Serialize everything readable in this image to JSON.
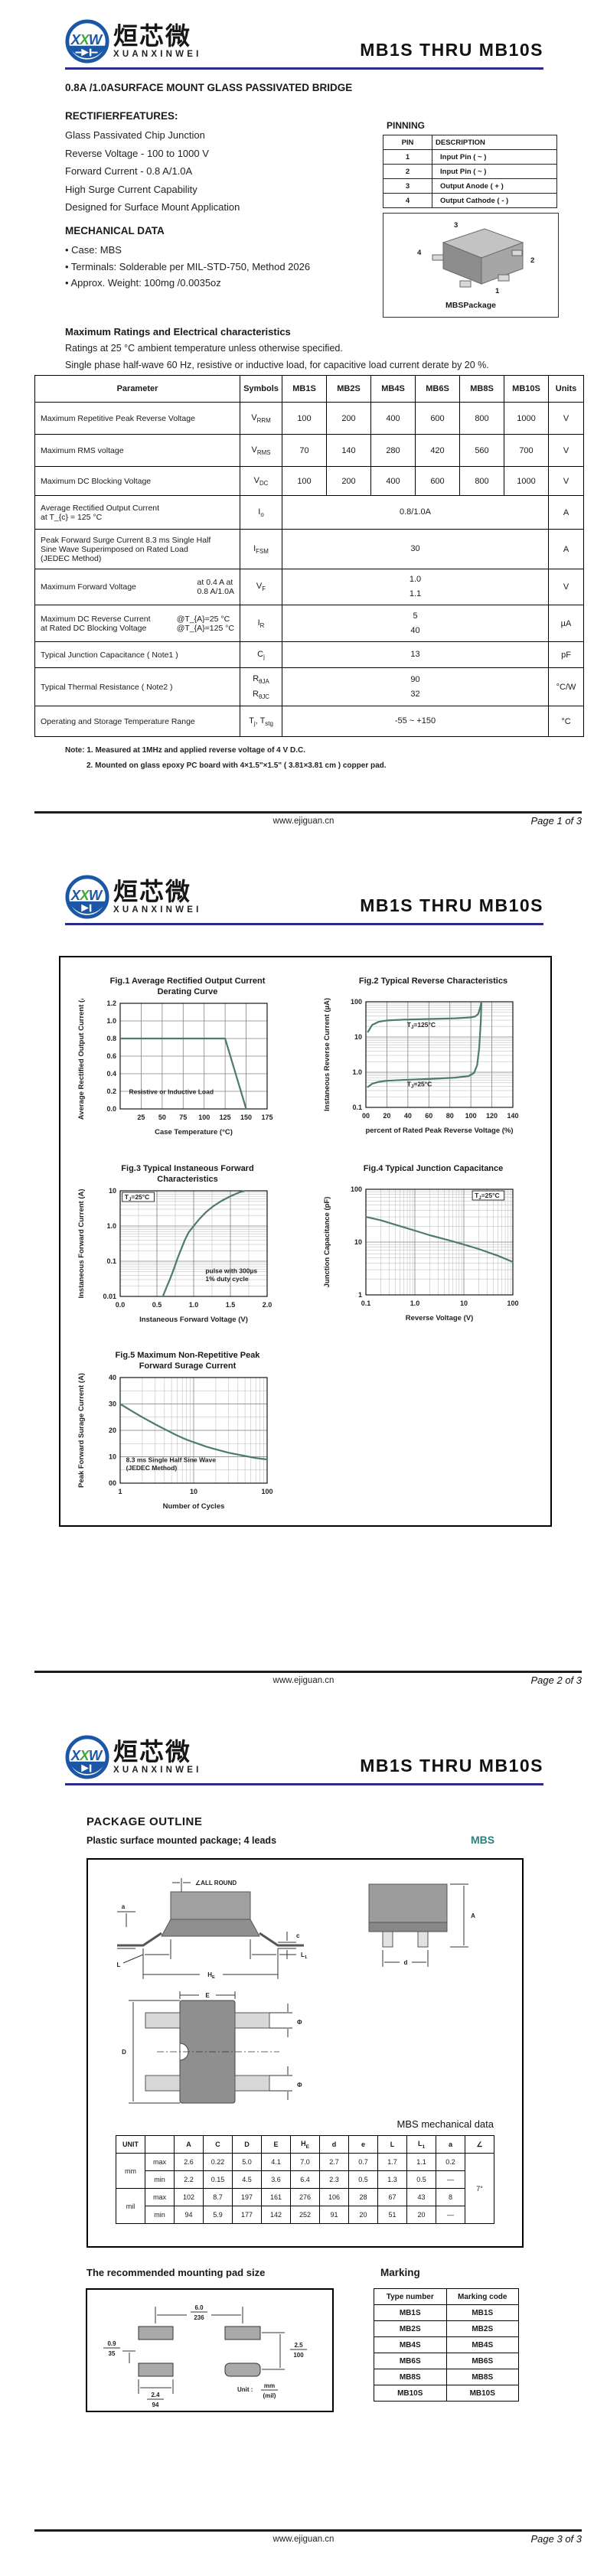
{
  "doc": {
    "title": "MB1S  THRU  MB10S"
  },
  "brand": {
    "name_cn": "烜芯微",
    "name_en": "XUANXINWEI",
    "logo_l1": "X",
    "logo_l2": "X",
    "logo_l3": "W"
  },
  "colors": {
    "accent_navy": "#2b2b8c",
    "teal": "#2e7f7c",
    "curve_teal": "#4d7a72",
    "logo_blue": "#1b57a6",
    "logo_green": "#3faa3b"
  },
  "footer": {
    "url": "www.ejiguan.cn",
    "pages": [
      "Page 1 of 3",
      "Page 2 of 3",
      "Page 3 of 3"
    ]
  },
  "page1": {
    "subtitle": "0.8A /1.0ASURFACE MOUNT GLASS PASSIVATED BRIDGE",
    "features_heading": "RECTIFIERFEATURES:",
    "features": [
      "Glass Passivated Chip Junction",
      "Reverse Voltage - 100 to 1000 V",
      "Forward Current - 0.8 A/1.0A",
      "High Surge Current Capability",
      "Designed for Surface Mount Application"
    ],
    "pinning_heading": "PINNING",
    "pinning": {
      "headers": [
        "PIN",
        "DESCRIPTION"
      ],
      "rows": [
        [
          "1",
          "Input Pin ( ~ )"
        ],
        [
          "2",
          "Input Pin ( ~ )"
        ],
        [
          "3",
          "Output Anode ( + )"
        ],
        [
          "4",
          "Output Cathode ( - )"
        ]
      ]
    },
    "mech_heading": "MECHANICAL DATA",
    "mech_items": [
      "• Case: MBS",
      "• Terminals: Solderable per MIL-STD-750, Method 2026",
      "• Approx. Weight: 100mg /0.0035oz"
    ],
    "package_caption": "MBSPackage",
    "package_pins": [
      "3",
      "4",
      "2",
      "1"
    ],
    "ratings_heading": "Maximum Ratings and Electrical characteristics",
    "ratings_sub1": "Ratings at 25 °C ambient temperature unless otherwise specified.",
    "ratings_sub2": "Single phase half-wave 60 Hz, resistive or inductive load, for capacitive load current derate by 20 %.",
    "ratings": {
      "headers": [
        "Parameter",
        "Symbols",
        "MB1S",
        "MB2S",
        "MB4S",
        "MB6S",
        "MB8S",
        "MB10S",
        "Units"
      ],
      "rows": [
        {
          "param": "Maximum Repetitive Peak Reverse Voltage",
          "symbol": "V_{RRM}",
          "values": [
            "100",
            "200",
            "400",
            "600",
            "800",
            "1000"
          ],
          "unit": "V"
        },
        {
          "param": "Maximum RMS voltage",
          "symbol": "V_{RMS}",
          "values": [
            "70",
            "140",
            "280",
            "420",
            "560",
            "700"
          ],
          "unit": "V"
        },
        {
          "param": "Maximum DC Blocking Voltage",
          "symbol": "V_{DC}",
          "values": [
            "100",
            "200",
            "400",
            "600",
            "800",
            "1000"
          ],
          "unit": "V"
        },
        {
          "param": "Average Rectified Output Current\nat T_{c} = 125 °C",
          "symbol": "I_{o}",
          "span": "0.8/1.0A",
          "unit": "A"
        },
        {
          "param": "Peak Forward Surge Current 8.3 ms Single Half\nSine Wave Superimposed on Rated Load\n(JEDEC Method)",
          "symbol": "I_{FSM}",
          "span": "30",
          "unit": "A"
        },
        {
          "param": "Maximum  Forward Voltage",
          "cond": "at 0.4 A at\n0.8 A/1.0A",
          "symbol": "V_{F}",
          "span": "1.0\n1.1",
          "unit": "V"
        },
        {
          "param": "Maximum DC Reverse Current\nat Rated DC Blocking Voltage",
          "cond": "@T_{A}=25 °C\n@T_{A}=125 °C",
          "symbol": "I_{R}",
          "span": "5\n40",
          "unit": "µA"
        },
        {
          "param": "Typical Junction Capacitance ( Note1 )",
          "symbol": "C_{j}",
          "span": "13",
          "unit": "pF"
        },
        {
          "param": "Typical Thermal Resistance ( Note2 )",
          "symbol": "R_{θJA}\nR_{θJC}",
          "span": "90\n32",
          "unit": "°C/W"
        },
        {
          "param": "Operating and Storage Temperature Range",
          "symbol": "T_{j}, T_{stg}",
          "span": "-55 ~ +150",
          "unit": "°C"
        }
      ]
    },
    "notes": [
      "Note:  1. Measured at 1MHz and applied reverse voltage of 4 V D.C.",
      "2. Mounted on glass epoxy PC board with 4×1.5\"×1.5\" ( 3.81×3.81 cm ) copper pad."
    ]
  },
  "chart_data": [
    {
      "type": "line",
      "title": "Fig.1  Average Rectified Output Current\nDerating Curve",
      "xlabel": "Case Temperature (°C)",
      "ylabel": "Average Rectified Output Current (A)",
      "x_scale": "linear",
      "y_scale": "linear",
      "xlim": [
        0,
        175
      ],
      "ylim": [
        0,
        1.2
      ],
      "x_ticks": [
        {
          "v": 25,
          "l": "25"
        },
        {
          "v": 50,
          "l": "50"
        },
        {
          "v": 75,
          "l": "75"
        },
        {
          "v": 100,
          "l": "100"
        },
        {
          "v": 125,
          "l": "125"
        },
        {
          "v": 150,
          "l": "150"
        },
        {
          "v": 175,
          "l": "175"
        }
      ],
      "y_ticks": [
        {
          "v": 0,
          "l": "0.0"
        },
        {
          "v": 0.2,
          "l": "0.2"
        },
        {
          "v": 0.4,
          "l": "0.4"
        },
        {
          "v": 0.6,
          "l": "0.6"
        },
        {
          "v": 0.8,
          "l": "0.8"
        },
        {
          "v": 1.0,
          "l": "1.0"
        },
        {
          "v": 1.2,
          "l": "1.2"
        }
      ],
      "series": [
        {
          "name": "derating",
          "points": [
            [
              0,
              0.8
            ],
            [
              125,
              0.8
            ],
            [
              150,
              0
            ]
          ]
        }
      ],
      "annotations": [
        {
          "text": "Resistive or Inductive Load",
          "px": 0.06,
          "py": 0.86
        }
      ]
    },
    {
      "type": "line",
      "title": "Fig.2  Typical Reverse Characteristics",
      "xlabel": "percent of Rated  Peak Reverse Voltage (%)",
      "ylabel": "Instaneous Reverse Current (µA)",
      "x_scale": "linear",
      "y_scale": "log",
      "xlim": [
        0,
        140
      ],
      "ylim": [
        0.1,
        100
      ],
      "x_ticks": [
        {
          "v": 0,
          "l": "00"
        },
        {
          "v": 20,
          "l": "20"
        },
        {
          "v": 40,
          "l": "40"
        },
        {
          "v": 60,
          "l": "60"
        },
        {
          "v": 80,
          "l": "80"
        },
        {
          "v": 100,
          "l": "100"
        },
        {
          "v": 120,
          "l": "120"
        },
        {
          "v": 140,
          "l": "140"
        }
      ],
      "y_ticks": [
        {
          "v": 0.1,
          "l": "0.1"
        },
        {
          "v": 1,
          "l": "1.0"
        },
        {
          "v": 10,
          "l": "10"
        },
        {
          "v": 100,
          "l": "100"
        }
      ],
      "series": [
        {
          "name": "T_{J}=125°C",
          "points": [
            [
              2,
              14
            ],
            [
              6,
              22
            ],
            [
              12,
              27
            ],
            [
              20,
              29.5
            ],
            [
              35,
              31
            ],
            [
              60,
              32.5
            ],
            [
              85,
              34
            ],
            [
              100,
              36
            ],
            [
              104,
              38
            ],
            [
              107,
              45
            ],
            [
              109,
              70
            ],
            [
              110,
              100
            ]
          ]
        },
        {
          "name": "T_{J}=25°C",
          "points": [
            [
              2,
              0.38
            ],
            [
              6,
              0.47
            ],
            [
              12,
              0.53
            ],
            [
              20,
              0.57
            ],
            [
              35,
              0.6
            ],
            [
              60,
              0.64
            ],
            [
              85,
              0.7
            ],
            [
              98,
              0.78
            ],
            [
              103,
              0.95
            ],
            [
              106,
              1.6
            ],
            [
              108,
              5
            ],
            [
              109.5,
              30
            ],
            [
              110,
              100
            ]
          ]
        }
      ],
      "annotations": [
        {
          "text": "T_{J}=125°C",
          "px": 0.28,
          "py": 0.24
        },
        {
          "text": "T_{J}=25°C",
          "px": 0.28,
          "py": 0.8
        }
      ]
    },
    {
      "type": "line",
      "title": "Fig.3  Typical Instaneous Forward\nCharacteristics",
      "xlabel": "Instaneous Forward Voltage (V)",
      "ylabel": "Instaneous Forward Current (A)",
      "x_scale": "linear",
      "y_scale": "log",
      "xlim": [
        0,
        2
      ],
      "ylim": [
        0.01,
        10
      ],
      "x_minor_step": 0.25,
      "x_ticks": [
        {
          "v": 0,
          "l": "0.0"
        },
        {
          "v": 0.5,
          "l": "0.5"
        },
        {
          "v": 1,
          "l": "1.0"
        },
        {
          "v": 1.5,
          "l": "1.5"
        },
        {
          "v": 2,
          "l": "2.0"
        }
      ],
      "y_ticks": [
        {
          "v": 0.01,
          "l": "0.01"
        },
        {
          "v": 0.1,
          "l": "0.1"
        },
        {
          "v": 1,
          "l": "1.0"
        },
        {
          "v": 10,
          "l": "10"
        }
      ],
      "series": [
        {
          "name": "forward",
          "points": [
            [
              0.58,
              0.01
            ],
            [
              0.63,
              0.018
            ],
            [
              0.68,
              0.032
            ],
            [
              0.73,
              0.06
            ],
            [
              0.78,
              0.12
            ],
            [
              0.83,
              0.22
            ],
            [
              0.88,
              0.4
            ],
            [
              0.93,
              0.65
            ],
            [
              1.0,
              1.0
            ],
            [
              1.08,
              1.6
            ],
            [
              1.17,
              2.5
            ],
            [
              1.27,
              3.7
            ],
            [
              1.38,
              5.2
            ],
            [
              1.5,
              7
            ],
            [
              1.62,
              9
            ],
            [
              1.7,
              10
            ]
          ]
        }
      ],
      "annotations": [
        {
          "text": "T_{J}=25°C",
          "px": 0.03,
          "py": 0.08,
          "boxed": true
        },
        {
          "text": "pulse with 300µs\n1% duty cycle",
          "px": 0.58,
          "py": 0.78
        }
      ]
    },
    {
      "type": "line",
      "title": "Fig.4  Typical Junction Capacitance",
      "xlabel": "Reverse  Voltage (V)",
      "ylabel": "Junction Capacitance (pF)",
      "x_scale": "log",
      "y_scale": "log",
      "xlim": [
        0.1,
        100
      ],
      "ylim": [
        1,
        100
      ],
      "x_ticks": [
        {
          "v": 0.1,
          "l": "0.1"
        },
        {
          "v": 1,
          "l": "1.0"
        },
        {
          "v": 10,
          "l": "10"
        },
        {
          "v": 100,
          "l": "100"
        }
      ],
      "y_ticks": [
        {
          "v": 1,
          "l": "1"
        },
        {
          "v": 10,
          "l": "10"
        },
        {
          "v": 100,
          "l": "100"
        }
      ],
      "series": [
        {
          "name": "capacitance",
          "points": [
            [
              0.1,
              30
            ],
            [
              0.2,
              26
            ],
            [
              0.5,
              20
            ],
            [
              1,
              16.5
            ],
            [
              2,
              13.5
            ],
            [
              5,
              10.8
            ],
            [
              10,
              9
            ],
            [
              20,
              7.4
            ],
            [
              50,
              5.5
            ],
            [
              100,
              4.2
            ]
          ]
        }
      ],
      "annotations": [
        {
          "text": "T_{J}=25°C",
          "px": 0.74,
          "py": 0.08,
          "boxed": true
        }
      ]
    },
    {
      "type": "line",
      "title": "Fig.5  Maximum Non-Repetitive Peak\nForward Surage Current",
      "xlabel": "Number of Cycles",
      "ylabel": "Peak Forward Surage Current (A)",
      "x_scale": "log",
      "y_scale": "linear",
      "xlim": [
        1,
        100
      ],
      "ylim": [
        0,
        40
      ],
      "y_minor_step": 5,
      "x_ticks": [
        {
          "v": 1,
          "l": "1"
        },
        {
          "v": 10,
          "l": "10"
        },
        {
          "v": 100,
          "l": "100"
        }
      ],
      "y_ticks": [
        {
          "v": 0,
          "l": "00"
        },
        {
          "v": 10,
          "l": "10"
        },
        {
          "v": 20,
          "l": "20"
        },
        {
          "v": 30,
          "l": "30"
        },
        {
          "v": 40,
          "l": "40"
        }
      ],
      "series": [
        {
          "name": "surge",
          "points": [
            [
              1,
              30
            ],
            [
              1.5,
              27
            ],
            [
              2,
              25
            ],
            [
              3,
              22.3
            ],
            [
              4,
              20.5
            ],
            [
              6,
              18
            ],
            [
              8,
              16.5
            ],
            [
              10,
              15.5
            ],
            [
              15,
              13.8
            ],
            [
              20,
              12.8
            ],
            [
              30,
              11.5
            ],
            [
              50,
              10.3
            ],
            [
              70,
              9.5
            ],
            [
              100,
              9
            ]
          ]
        }
      ],
      "annotations": [
        {
          "text": "8.3 ms Single Half Sine Wave\n(JEDEC Method)",
          "px": 0.04,
          "py": 0.8
        }
      ]
    }
  ],
  "page3": {
    "outline_heading": "PACKAGE OUTLINE",
    "outline_sub": "Plastic surface mounted package; 4 leads",
    "mbs_label": "MBS",
    "outline_labels": {
      "all_round": "ALL ROUND",
      "a": "a",
      "c": "c",
      "L": "L",
      "L1": "L_{1}",
      "HE": "H_{E}",
      "A": "A",
      "d": "d",
      "E": "E",
      "D": "D",
      "phi": "Φ"
    },
    "mech_caption": "MBS mechanical data",
    "mech_table": {
      "col_headers": [
        "UNIT",
        "",
        "A",
        "C",
        "D",
        "E",
        "H_{E}",
        "d",
        "e",
        "L",
        "L_{1}",
        "a",
        "∠"
      ],
      "groups": [
        {
          "unit": "mm",
          "rows": [
            {
              "mm": "max",
              "vals": [
                "2.6",
                "0.22",
                "5.0",
                "4.1",
                "7.0",
                "2.7",
                "0.7",
                "1.7",
                "1.1",
                "0.2"
              ]
            },
            {
              "mm": "min",
              "vals": [
                "2.2",
                "0.15",
                "4.5",
                "3.6",
                "6.4",
                "2.3",
                "0.5",
                "1.3",
                "0.5",
                "—"
              ]
            }
          ]
        },
        {
          "unit": "mil",
          "rows": [
            {
              "mm": "max",
              "vals": [
                "102",
                "8.7",
                "197",
                "161",
                "276",
                "106",
                "28",
                "67",
                "43",
                "8"
              ]
            },
            {
              "mm": "min",
              "vals": [
                "94",
                "5.9",
                "177",
                "142",
                "252",
                "91",
                "20",
                "51",
                "20",
                "—"
              ]
            }
          ]
        }
      ],
      "angle": "7°"
    },
    "pad_heading": "The recommended mounting pad size",
    "pad_drawing": {
      "dim_top": "6.0|236",
      "dim_right": "2.5|100",
      "dim_left": "0.9|35",
      "dim_bottom": "2.4|94",
      "unit_label": "Unit :",
      "unit_frac": "mm|(mil)"
    },
    "marking_heading": "Marking",
    "marking": {
      "headers": [
        "Type number",
        "Marking code"
      ],
      "rows": [
        [
          "MB1S",
          "MB1S"
        ],
        [
          "MB2S",
          "MB2S"
        ],
        [
          "MB4S",
          "MB4S"
        ],
        [
          "MB6S",
          "MB6S"
        ],
        [
          "MB8S",
          "MB8S"
        ],
        [
          "MB10S",
          "MB10S"
        ]
      ]
    }
  }
}
